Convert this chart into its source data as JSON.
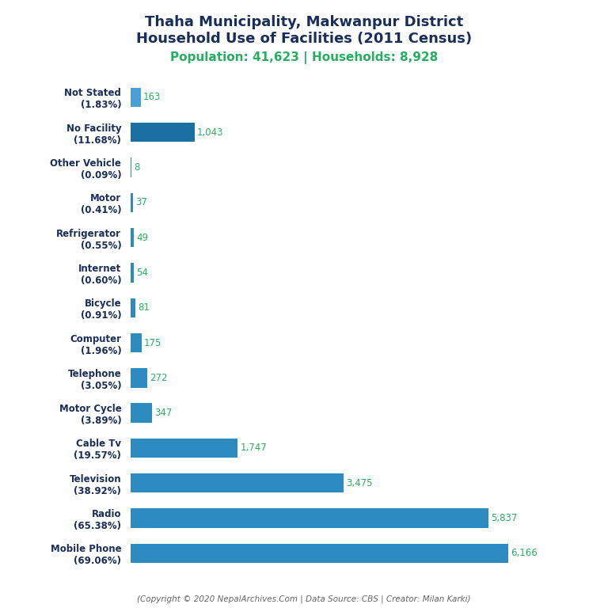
{
  "title_line1": "Thaha Municipality, Makwanpur District",
  "title_line2": "Household Use of Facilities (2011 Census)",
  "subtitle": "Population: 41,623 | Households: 8,928",
  "footer": "(Copyright © 2020 NepalArchives.Com | Data Source: CBS | Creator: Milan Karki)",
  "categories": [
    "Mobile Phone\n(69.06%)",
    "Radio\n(65.38%)",
    "Television\n(38.92%)",
    "Cable Tv\n(19.57%)",
    "Motor Cycle\n(3.89%)",
    "Telephone\n(3.05%)",
    "Computer\n(1.96%)",
    "Bicycle\n(0.91%)",
    "Internet\n(0.60%)",
    "Refrigerator\n(0.55%)",
    "Motor\n(0.41%)",
    "Other Vehicle\n(0.09%)",
    "No Facility\n(11.68%)",
    "Not Stated\n(1.83%)"
  ],
  "values": [
    6166,
    5837,
    3475,
    1747,
    347,
    272,
    175,
    81,
    54,
    49,
    37,
    8,
    1043,
    163
  ],
  "bar_color_default": "#2e8bc0",
  "bar_color_no_facility": "#1a6fa3",
  "bar_color_not_stated": "#4a9fd4",
  "title_color": "#1a2e5a",
  "subtitle_color": "#27ae60",
  "value_color": "#27ae60",
  "footer_color": "#666666",
  "background_color": "#ffffff",
  "xlim": [
    0,
    7000
  ],
  "bar_height": 0.55,
  "title_fontsize": 13,
  "subtitle_fontsize": 11,
  "label_fontsize": 8.5,
  "value_fontsize": 8.5
}
